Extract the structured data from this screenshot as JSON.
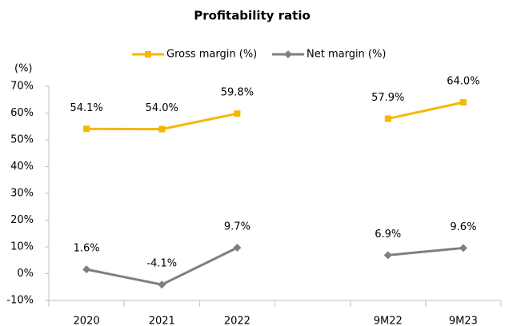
{
  "chart_data": {
    "type": "line",
    "title": "Profitability ratio",
    "y_axis_label": "(%)",
    "categories": [
      "2020",
      "2021",
      "2022",
      null,
      "9M22",
      "9M23"
    ],
    "series": [
      {
        "name": "Gross margin (%)",
        "color": "#f5b800",
        "marker": "square",
        "values": [
          54.1,
          54.0,
          59.8,
          null,
          57.9,
          64.0
        ],
        "value_labels": [
          "54.1%",
          "54.0%",
          "59.8%",
          null,
          "57.9%",
          "64.0%"
        ]
      },
      {
        "name": "Net margin (%)",
        "color": "#7f7f7f",
        "marker": "diamond",
        "values": [
          1.6,
          -4.1,
          9.7,
          null,
          6.9,
          9.6
        ],
        "value_labels": [
          "1.6%",
          "-4.1%",
          "9.7%",
          null,
          "6.9%",
          "9.6%"
        ]
      }
    ],
    "ylim": [
      -10,
      70
    ],
    "yticks": [
      {
        "value": -10,
        "label": "-10%"
      },
      {
        "value": 0,
        "label": "0%"
      },
      {
        "value": 10,
        "label": "10%"
      },
      {
        "value": 20,
        "label": "20%"
      },
      {
        "value": 30,
        "label": "30%"
      },
      {
        "value": 40,
        "label": "40%"
      },
      {
        "value": 50,
        "label": "50%"
      },
      {
        "value": 60,
        "label": "60%"
      },
      {
        "value": 70,
        "label": "70%"
      }
    ],
    "grid": false,
    "legend": "top"
  }
}
